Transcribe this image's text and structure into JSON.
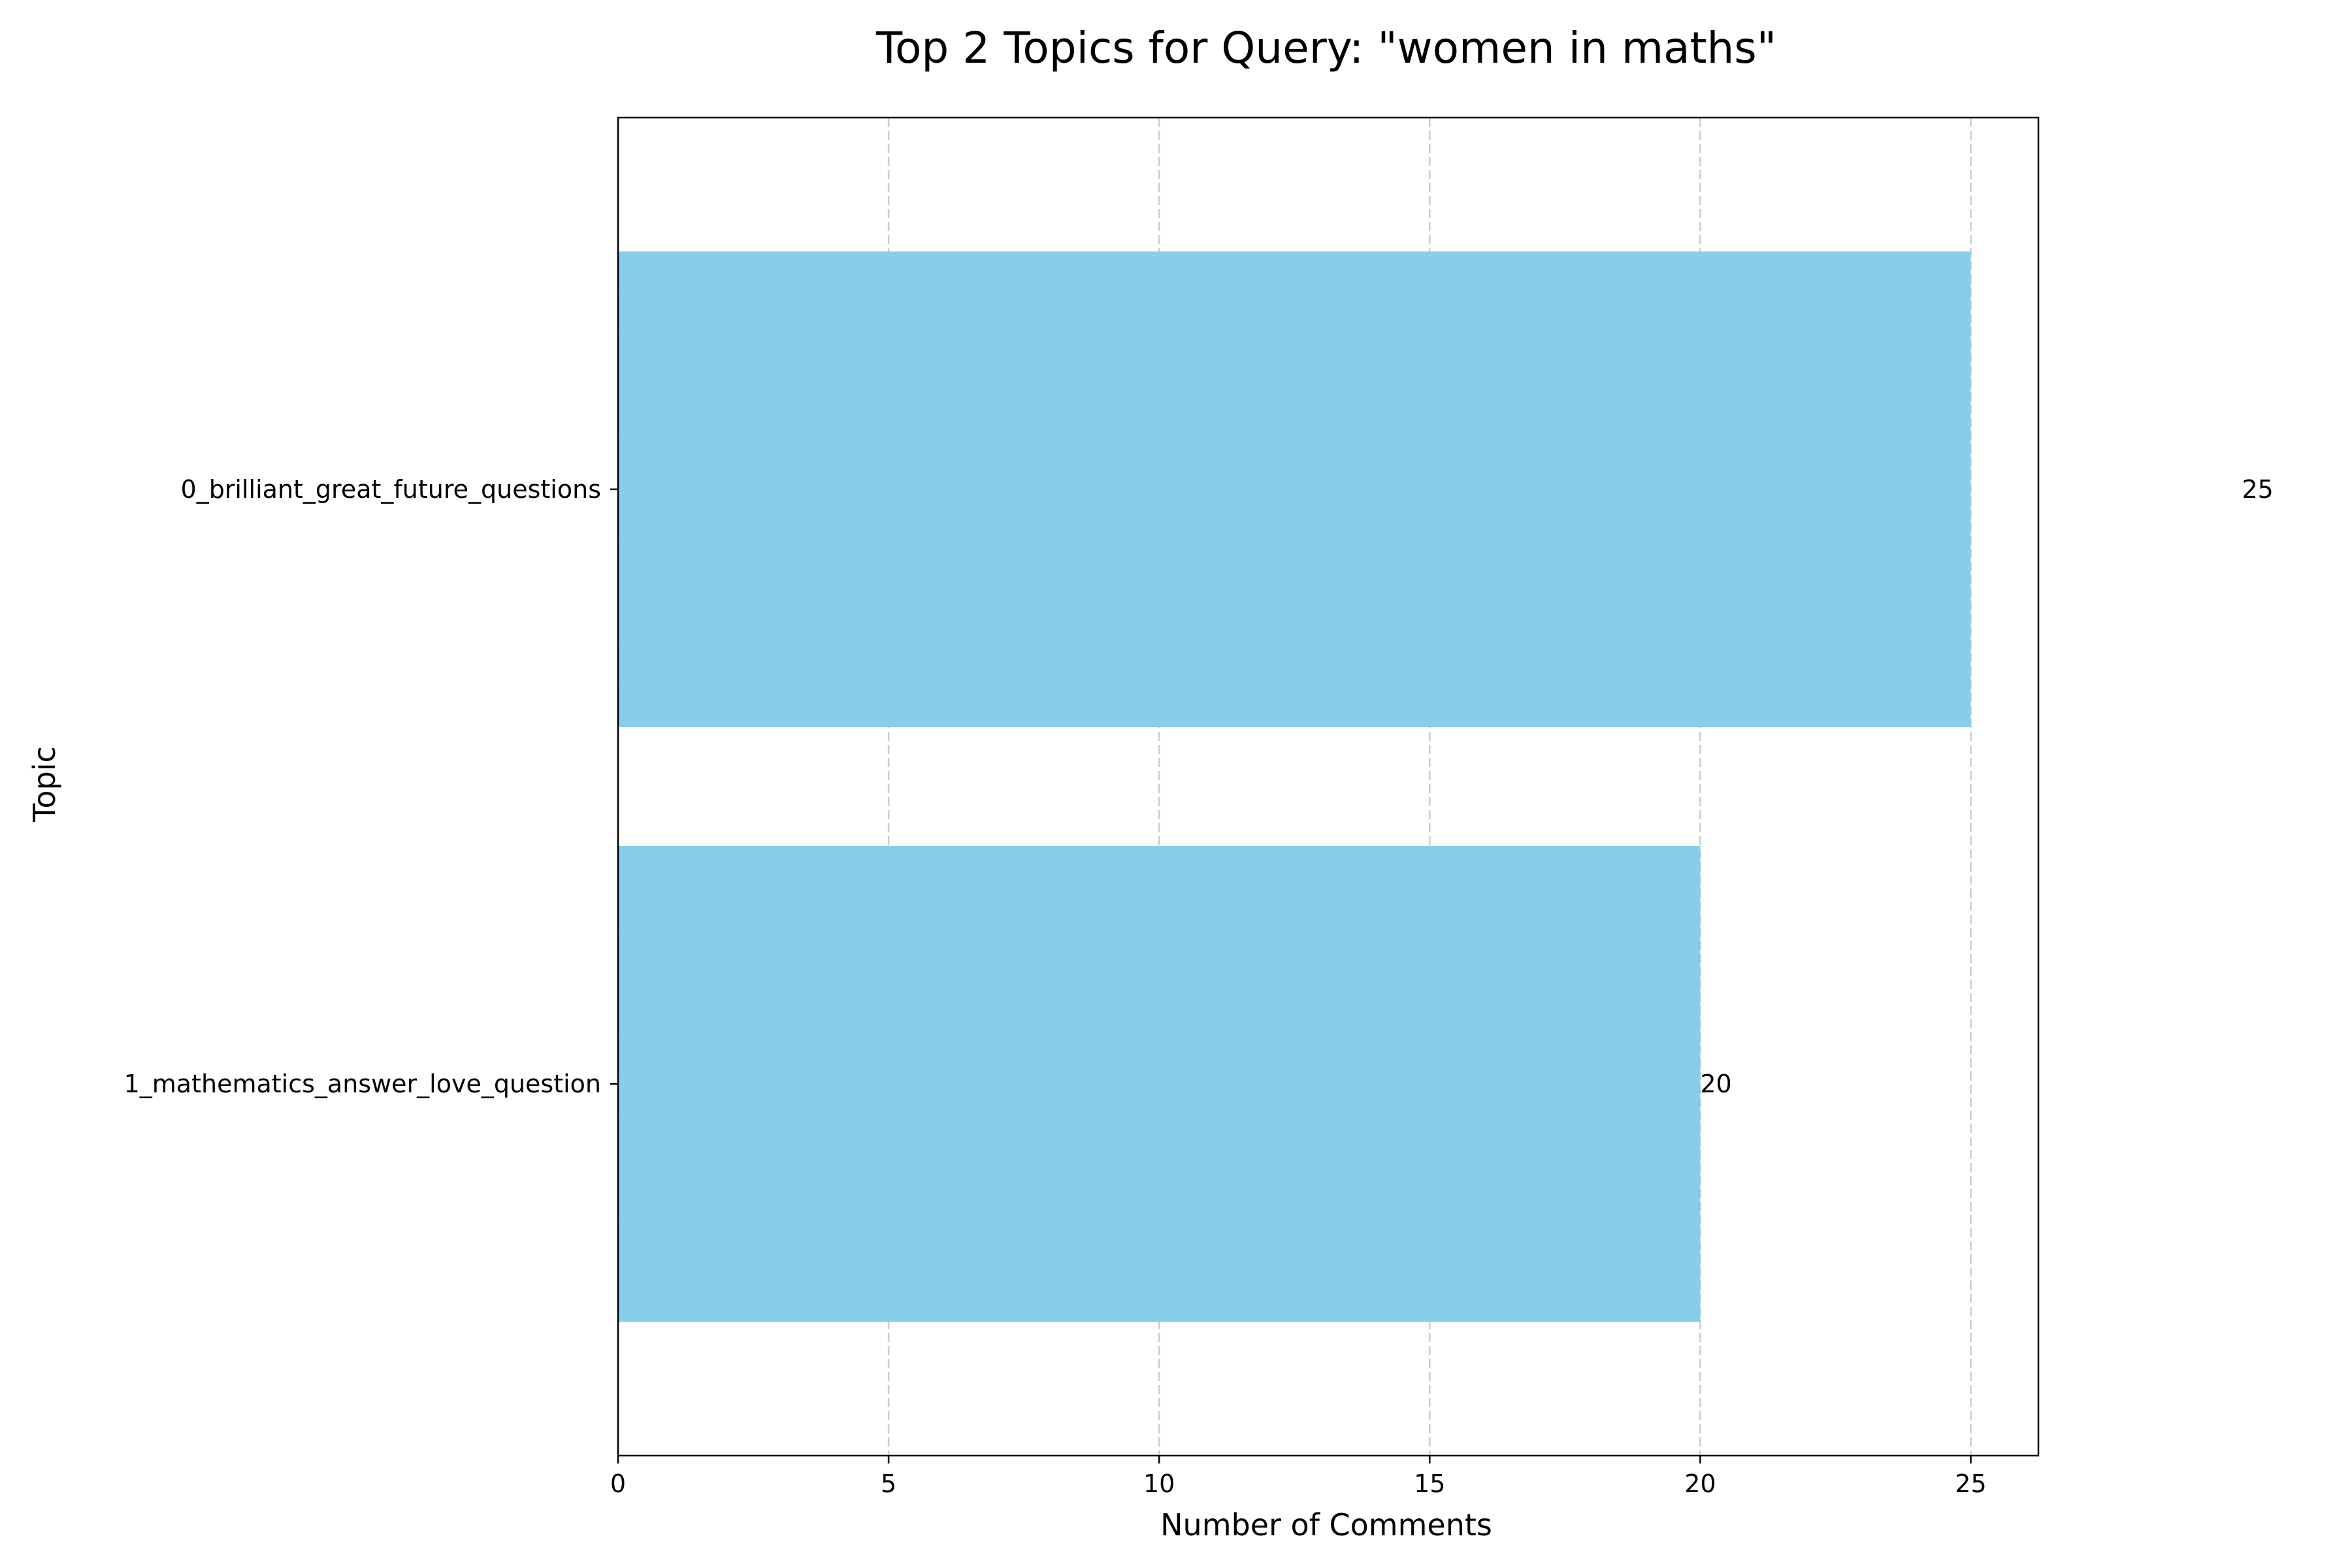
{
  "chart_data": {
    "type": "bar",
    "orientation": "horizontal",
    "title": "Top 2 Topics for Query: \"women in maths\"",
    "xlabel": "Number of Comments",
    "ylabel": "Topic",
    "categories": [
      "0_brilliant_great_future_questions",
      "1_mathematics_answer_love_question"
    ],
    "values": [
      25,
      20
    ],
    "data_labels": [
      "25",
      "20"
    ],
    "xlim": [
      0,
      26.25
    ],
    "xticks": [
      0,
      5,
      10,
      15,
      20,
      25
    ],
    "xtick_labels": [
      "0",
      "5",
      "10",
      "15",
      "20",
      "25"
    ],
    "grid": {
      "x": true,
      "y": false,
      "style": "dashed"
    },
    "legend": "none",
    "colors": {
      "bar": "#87CEEB",
      "grid": "#cccccc",
      "axes": "#000000",
      "background": "#ffffff"
    }
  }
}
